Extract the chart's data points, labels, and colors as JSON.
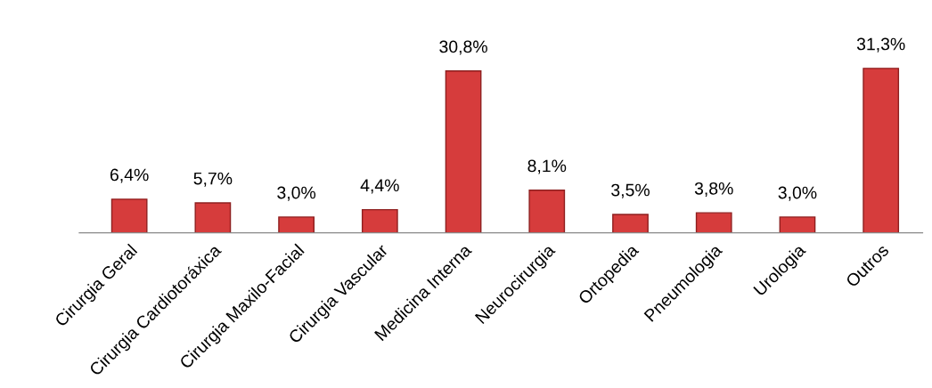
{
  "chart_data": {
    "type": "bar",
    "categories": [
      "Cirurgia Geral",
      "Cirurgia Cardiotoráxica",
      "Cirurgia Maxilo-Facial",
      "Cirurgia Vascular",
      "Medicina Interna",
      "Neurocirurgia",
      "Ortopedia",
      "Pneumologia",
      "Urologia",
      "Outros"
    ],
    "values": [
      6.4,
      5.7,
      3.0,
      4.4,
      30.8,
      8.1,
      3.5,
      3.8,
      3.0,
      31.3
    ],
    "value_labels": [
      "6,4%",
      "5,7%",
      "3,0%",
      "4,4%",
      "30,8%",
      "8,1%",
      "3,5%",
      "3,8%",
      "3,0%",
      "31,3%"
    ],
    "color": "#d63c3c",
    "grid": false,
    "legend": false
  }
}
